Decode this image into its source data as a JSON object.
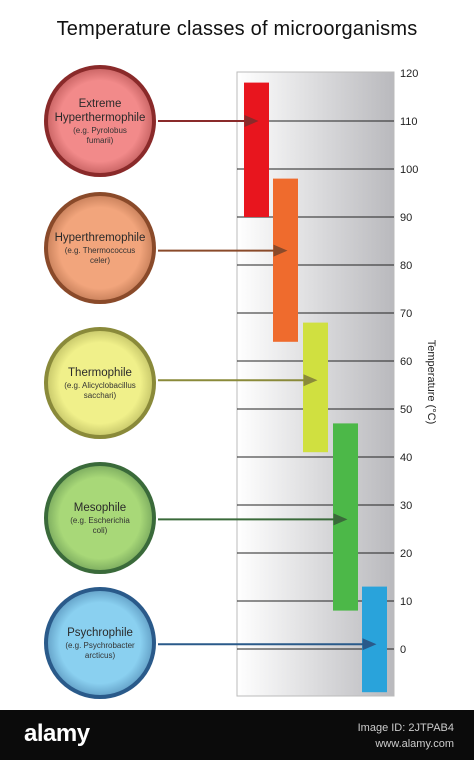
{
  "title": "Temperature classes of microorganisms",
  "axis": {
    "label": "Temperature (°C)",
    "ticks": [
      "120",
      "110",
      "100",
      "90",
      "80",
      "70",
      "60",
      "50",
      "40",
      "30",
      "20",
      "10",
      "0"
    ],
    "min": -8,
    "max": 120
  },
  "classes": [
    {
      "name": "Extreme\nHyperthermophile",
      "example": "(e.g. Pyrolobus fumarii)",
      "range": [
        90,
        118
      ],
      "arrow_at": 110,
      "color": "#e8151e",
      "circle_fill": "#f28a8a",
      "circle_border": "#8a2a2a"
    },
    {
      "name": "Hyperthremophile",
      "example": "(e.g. Thermococcus celer)",
      "range": [
        64,
        98
      ],
      "arrow_at": 83,
      "color": "#ef6b2d",
      "circle_fill": "#f2a57c",
      "circle_border": "#8a4a2a"
    },
    {
      "name": "Thermophile",
      "example": "(e.g. Alicyclobacillus sacchari)",
      "range": [
        41,
        68
      ],
      "arrow_at": 56,
      "color": "#d0e040",
      "circle_fill": "#f0f08a",
      "circle_border": "#8a8a3a"
    },
    {
      "name": "Mesophile",
      "example": "(e.g. Escherichia coli)",
      "range": [
        8,
        47
      ],
      "arrow_at": 27,
      "color": "#4cb848",
      "circle_fill": "#a8d878",
      "circle_border": "#3a6a3a"
    },
    {
      "name": "Psychrophile",
      "example": "(e.g. Psychrobacter arcticus)",
      "range": [
        -9,
        13
      ],
      "arrow_at": 1,
      "color": "#29a3db",
      "circle_fill": "#8ad0f0",
      "circle_border": "#2a5a8a"
    }
  ],
  "footer": {
    "brand": "alamy",
    "image_id": "Image ID: 2JTPAB4",
    "url": "www.alamy.com"
  }
}
